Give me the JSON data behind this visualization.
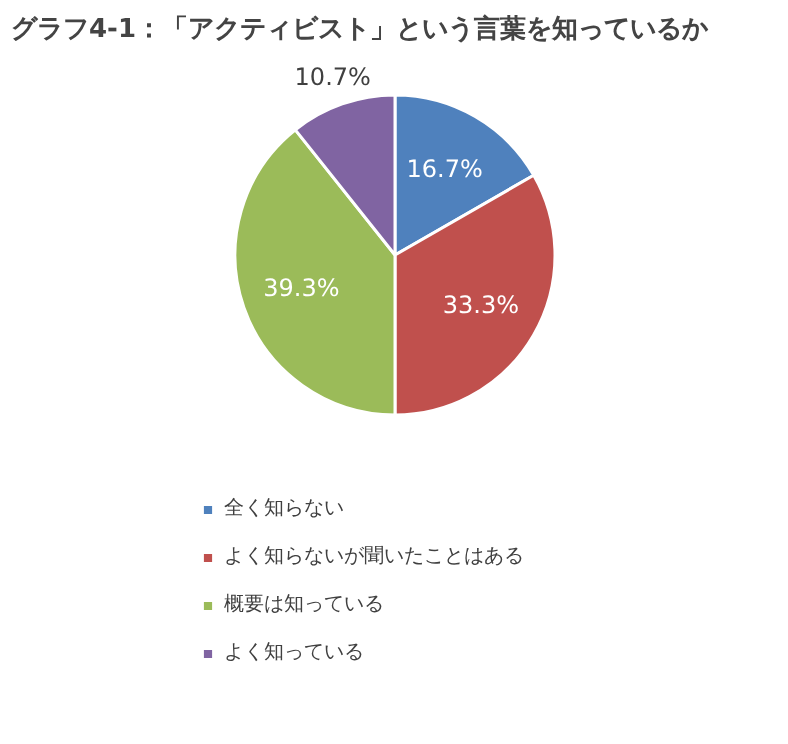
{
  "chart_data": {
    "type": "pie",
    "title": "グラフ4-1：「アクティビスト」という言葉を知っているか",
    "categories": [
      "全く知らない",
      "よく知らないが聞いたことはある",
      "概要は知っている",
      "よく知っている"
    ],
    "values": [
      16.7,
      33.3,
      39.3,
      10.7
    ],
    "colors": [
      "#4f81bd",
      "#c0504d",
      "#9bbb59",
      "#8064a2"
    ],
    "value_labels": [
      "16.7%",
      "33.3%",
      "39.3%",
      "10.7%"
    ],
    "legend": "bottom"
  }
}
